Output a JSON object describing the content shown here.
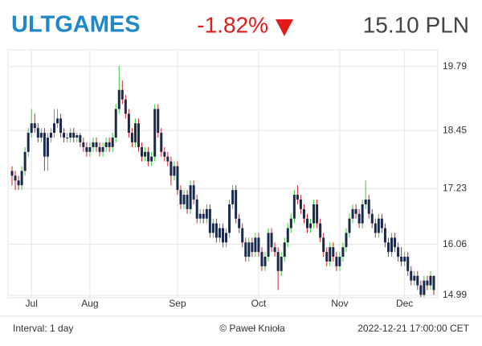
{
  "header": {
    "symbol": "ULTGAMES",
    "change": "-1.82%",
    "price": "15.10 PLN"
  },
  "footer": {
    "interval": "Interval: 1 day",
    "copyright": "© Paweł Knioła",
    "timestamp": "2022-12-21 17:00:00 CET"
  },
  "chart_data": {
    "type": "candlestick",
    "categories": [
      null,
      null,
      null,
      null,
      null,
      null,
      "Jul",
      null,
      null,
      null,
      null,
      null,
      null,
      null,
      null,
      null,
      null,
      null,
      null,
      null,
      null,
      null,
      null,
      null,
      "Aug",
      null,
      null,
      null,
      null,
      null,
      null,
      null,
      null,
      null,
      null,
      null,
      null,
      null,
      null,
      null,
      null,
      null,
      null,
      null,
      null,
      null,
      null,
      null,
      null,
      null,
      null,
      "Sep",
      null,
      null,
      null,
      null,
      null,
      null,
      null,
      null,
      null,
      null,
      null,
      null,
      null,
      null,
      null,
      null,
      null,
      null,
      null,
      null,
      null,
      null,
      null,
      null,
      "Oct",
      null,
      null,
      null,
      null,
      null,
      null,
      null,
      null,
      null,
      null,
      null,
      null,
      null,
      null,
      null,
      null,
      null,
      null,
      null,
      null,
      null,
      null,
      null,
      null,
      "Nov",
      null,
      null,
      null,
      null,
      null,
      null,
      null,
      null,
      null,
      null,
      null,
      null,
      null,
      null,
      null,
      null,
      null,
      null,
      null,
      "Dec",
      null,
      null,
      null,
      null,
      null,
      null,
      null,
      null,
      null
    ],
    "ohlc": [
      [
        17.6,
        17.7,
        17.3,
        17.5
      ],
      [
        17.5,
        17.6,
        17.2,
        17.4
      ],
      [
        17.4,
        17.5,
        17.2,
        17.3
      ],
      [
        17.3,
        17.7,
        17.2,
        17.6
      ],
      [
        17.6,
        18.1,
        17.5,
        18.0
      ],
      [
        18.0,
        18.5,
        17.9,
        18.4
      ],
      [
        18.4,
        18.9,
        18.3,
        18.6
      ],
      [
        18.6,
        18.8,
        18.4,
        18.5
      ],
      [
        18.5,
        18.6,
        18.2,
        18.3
      ],
      [
        18.3,
        18.5,
        18.2,
        18.4
      ],
      [
        18.4,
        18.5,
        17.6,
        17.9
      ],
      [
        17.9,
        18.4,
        17.6,
        18.3
      ],
      [
        18.3,
        18.5,
        18.2,
        18.4
      ],
      [
        18.4,
        18.9,
        18.3,
        18.6
      ],
      [
        18.6,
        18.9,
        18.5,
        18.7
      ],
      [
        18.7,
        18.8,
        18.3,
        18.4
      ],
      [
        18.4,
        18.5,
        18.2,
        18.3
      ],
      [
        18.3,
        18.4,
        18.2,
        18.3
      ],
      [
        18.3,
        18.5,
        18.2,
        18.4
      ],
      [
        18.4,
        18.5,
        18.2,
        18.3
      ],
      [
        18.3,
        18.4,
        18.2,
        18.35
      ],
      [
        18.35,
        18.4,
        18.1,
        18.2
      ],
      [
        18.2,
        18.3,
        18.0,
        18.1
      ],
      [
        18.1,
        18.2,
        17.9,
        18.0
      ],
      [
        18.0,
        18.2,
        17.9,
        18.1
      ],
      [
        18.1,
        18.3,
        18.0,
        18.2
      ],
      [
        18.2,
        18.3,
        18.0,
        18.1
      ],
      [
        18.1,
        18.2,
        17.9,
        18.0
      ],
      [
        18.0,
        18.2,
        17.9,
        18.1
      ],
      [
        18.1,
        18.3,
        18.0,
        18.2
      ],
      [
        18.2,
        18.3,
        18.0,
        18.1
      ],
      [
        18.1,
        18.4,
        18.0,
        18.3
      ],
      [
        18.3,
        19.0,
        18.2,
        18.9
      ],
      [
        18.9,
        19.8,
        18.8,
        19.3
      ],
      [
        19.3,
        19.5,
        19.0,
        19.1
      ],
      [
        19.1,
        19.2,
        18.7,
        18.8
      ],
      [
        18.8,
        18.9,
        18.3,
        18.4
      ],
      [
        18.4,
        18.5,
        18.1,
        18.2
      ],
      [
        18.2,
        18.7,
        18.1,
        18.6
      ],
      [
        18.6,
        18.7,
        18.0,
        18.1
      ],
      [
        18.1,
        18.2,
        17.8,
        17.9
      ],
      [
        17.9,
        18.1,
        17.8,
        18.0
      ],
      [
        18.0,
        18.1,
        17.7,
        17.8
      ],
      [
        17.8,
        18.0,
        17.7,
        17.9
      ],
      [
        17.9,
        19.0,
        17.8,
        18.9
      ],
      [
        18.9,
        19.0,
        18.3,
        18.4
      ],
      [
        18.4,
        18.5,
        17.9,
        18.0
      ],
      [
        18.0,
        18.1,
        17.8,
        17.9
      ],
      [
        17.9,
        18.0,
        17.7,
        17.8
      ],
      [
        17.8,
        17.9,
        17.3,
        17.5
      ],
      [
        17.5,
        17.8,
        17.4,
        17.7
      ],
      [
        17.7,
        17.8,
        17.1,
        17.2
      ],
      [
        17.2,
        17.3,
        16.8,
        16.9
      ],
      [
        16.9,
        17.2,
        16.8,
        17.1
      ],
      [
        17.1,
        17.2,
        16.7,
        16.8
      ],
      [
        16.8,
        17.4,
        16.7,
        17.3
      ],
      [
        17.3,
        17.4,
        16.9,
        17.0
      ],
      [
        17.0,
        17.1,
        16.5,
        16.6
      ],
      [
        16.6,
        16.8,
        16.5,
        16.7
      ],
      [
        16.7,
        16.8,
        16.5,
        16.6
      ],
      [
        16.6,
        16.9,
        16.5,
        16.8
      ],
      [
        16.8,
        16.9,
        16.2,
        16.3
      ],
      [
        16.3,
        16.6,
        16.2,
        16.5
      ],
      [
        16.5,
        16.6,
        16.1,
        16.2
      ],
      [
        16.2,
        16.5,
        16.1,
        16.4
      ],
      [
        16.4,
        16.5,
        16.0,
        16.1
      ],
      [
        16.1,
        16.4,
        16.0,
        16.3
      ],
      [
        16.3,
        17.0,
        16.2,
        16.9
      ],
      [
        16.9,
        17.3,
        16.8,
        17.2
      ],
      [
        17.2,
        17.3,
        16.5,
        16.6
      ],
      [
        16.6,
        16.7,
        16.3,
        16.4
      ],
      [
        16.4,
        16.5,
        16.0,
        16.1
      ],
      [
        16.1,
        16.2,
        15.7,
        15.8
      ],
      [
        15.8,
        16.2,
        15.7,
        16.1
      ],
      [
        16.1,
        16.2,
        15.8,
        15.9
      ],
      [
        15.9,
        16.3,
        15.8,
        16.2
      ],
      [
        16.2,
        16.3,
        15.8,
        15.9
      ],
      [
        15.9,
        16.0,
        15.5,
        15.6
      ],
      [
        15.6,
        15.9,
        15.5,
        15.8
      ],
      [
        15.8,
        16.4,
        15.7,
        16.3
      ],
      [
        16.3,
        16.4,
        15.9,
        16.0
      ],
      [
        16.0,
        16.1,
        15.8,
        15.9
      ],
      [
        15.9,
        16.0,
        15.1,
        15.5
      ],
      [
        15.5,
        15.9,
        15.4,
        15.8
      ],
      [
        15.8,
        16.2,
        15.7,
        16.1
      ],
      [
        16.1,
        16.5,
        16.0,
        16.4
      ],
      [
        16.4,
        16.7,
        16.3,
        16.6
      ],
      [
        16.6,
        17.2,
        16.5,
        17.1
      ],
      [
        17.1,
        17.3,
        16.9,
        17.0
      ],
      [
        17.0,
        17.1,
        16.7,
        16.8
      ],
      [
        16.8,
        16.9,
        16.5,
        16.6
      ],
      [
        16.6,
        16.7,
        16.3,
        16.4
      ],
      [
        16.4,
        16.6,
        16.3,
        16.5
      ],
      [
        16.5,
        17.0,
        16.4,
        16.9
      ],
      [
        16.9,
        17.0,
        16.4,
        16.5
      ],
      [
        16.5,
        16.6,
        16.1,
        16.2
      ],
      [
        16.2,
        16.3,
        15.8,
        15.9
      ],
      [
        15.9,
        16.0,
        15.6,
        15.7
      ],
      [
        15.7,
        16.1,
        15.6,
        16.0
      ],
      [
        16.0,
        16.1,
        15.7,
        15.8
      ],
      [
        15.8,
        15.9,
        15.5,
        15.6
      ],
      [
        15.6,
        15.9,
        15.5,
        15.8
      ],
      [
        15.8,
        16.1,
        15.7,
        16.0
      ],
      [
        16.0,
        16.4,
        15.9,
        16.3
      ],
      [
        16.3,
        16.7,
        16.2,
        16.6
      ],
      [
        16.6,
        16.9,
        16.5,
        16.8
      ],
      [
        16.8,
        16.9,
        16.6,
        16.7
      ],
      [
        16.7,
        16.8,
        16.4,
        16.5
      ],
      [
        16.5,
        17.0,
        16.4,
        16.9
      ],
      [
        16.9,
        17.4,
        16.8,
        17.0
      ],
      [
        17.0,
        17.1,
        16.6,
        16.7
      ],
      [
        16.7,
        16.8,
        16.4,
        16.5
      ],
      [
        16.5,
        16.6,
        16.2,
        16.3
      ],
      [
        16.3,
        16.7,
        16.2,
        16.6
      ],
      [
        16.6,
        16.7,
        16.3,
        16.4
      ],
      [
        16.4,
        16.5,
        16.0,
        16.1
      ],
      [
        16.1,
        16.2,
        15.8,
        15.9
      ],
      [
        15.9,
        16.3,
        15.8,
        16.2
      ],
      [
        16.2,
        16.3,
        15.9,
        16.0
      ],
      [
        16.0,
        16.1,
        15.7,
        15.8
      ],
      [
        15.8,
        16.0,
        15.6,
        15.7
      ],
      [
        15.7,
        15.9,
        15.6,
        15.8
      ],
      [
        15.8,
        15.9,
        15.4,
        15.5
      ],
      [
        15.5,
        15.6,
        15.2,
        15.3
      ],
      [
        15.3,
        15.5,
        15.2,
        15.4
      ],
      [
        15.4,
        15.5,
        15.1,
        15.2
      ],
      [
        15.2,
        15.3,
        14.95,
        15.0
      ],
      [
        15.0,
        15.4,
        14.95,
        15.3
      ],
      [
        15.3,
        15.4,
        15.1,
        15.2
      ],
      [
        15.2,
        15.5,
        15.1,
        15.4
      ],
      [
        15.4,
        15.4,
        15.0,
        15.1
      ]
    ],
    "ylim": [
      14.94,
      20.14
    ],
    "yticks": [
      14.99,
      16.06,
      17.23,
      18.45,
      19.79
    ],
    "grid": true,
    "body_color": "#1b2a4a",
    "up_color": "#33cc33",
    "down_color": "#cc2233"
  }
}
